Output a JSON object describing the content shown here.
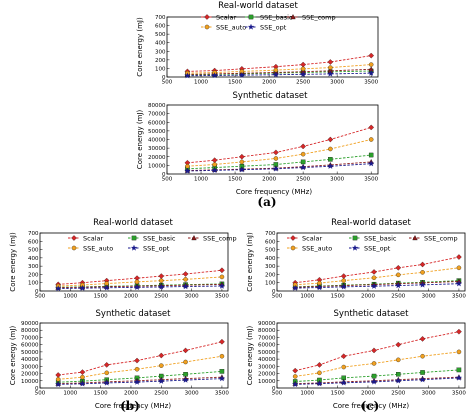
{
  "labels": [
    "(a)",
    "(b)",
    "(c)"
  ],
  "series_defs": [
    {
      "name": "Scalar",
      "color": "#d62728",
      "marker": "diamond"
    },
    {
      "name": "SSE_basic",
      "color": "#2ca02c",
      "marker": "square"
    },
    {
      "name": "SSE_comp",
      "color": "#8b1a1a",
      "marker": "triangle"
    },
    {
      "name": "SSE_auto",
      "color": "#f0a020",
      "marker": "circle"
    },
    {
      "name": "SSE_opt",
      "color": "#1a1a8c",
      "marker": "star"
    }
  ],
  "chart_data": [
    {
      "type": "line",
      "figure": "(a)",
      "title": "Real-world dataset",
      "xlabel": "",
      "ylabel": "Core energy (mJ)",
      "x": [
        800,
        1200,
        1600,
        2100,
        2500,
        2900,
        3500
      ],
      "xlim": [
        500,
        3600
      ],
      "ylim": [
        0,
        700
      ],
      "xticks": [
        500,
        1000,
        1500,
        2000,
        2500,
        3000,
        3500
      ],
      "yticks": [
        0,
        100,
        200,
        300,
        400,
        500,
        600,
        700
      ],
      "series": [
        {
          "name": "Scalar",
          "values": [
            65,
            75,
            95,
            120,
            145,
            175,
            250
          ]
        },
        {
          "name": "SSE_basic",
          "values": [
            25,
            30,
            37,
            45,
            52,
            60,
            70
          ]
        },
        {
          "name": "SSE_comp",
          "values": [
            30,
            36,
            44,
            53,
            62,
            72,
            90
          ]
        },
        {
          "name": "SSE_auto",
          "values": [
            45,
            52,
            65,
            80,
            95,
            110,
            145
          ]
        },
        {
          "name": "SSE_opt",
          "values": [
            15,
            18,
            22,
            27,
            31,
            36,
            45
          ]
        }
      ]
    },
    {
      "type": "line",
      "figure": "(a)",
      "title": "Synthetic dataset",
      "xlabel": "Core frequency (MHz)",
      "ylabel": "Core energy (mJ)",
      "x": [
        800,
        1200,
        1600,
        2100,
        2500,
        2900,
        3500
      ],
      "xlim": [
        500,
        3600
      ],
      "ylim": [
        0,
        80000
      ],
      "xticks": [
        500,
        1000,
        1500,
        2000,
        2500,
        3000,
        3500
      ],
      "yticks": [
        0,
        10000,
        20000,
        30000,
        40000,
        50000,
        60000,
        70000,
        80000
      ],
      "series": [
        {
          "name": "Scalar",
          "values": [
            13000,
            16000,
            20000,
            25000,
            32000,
            40000,
            54000
          ]
        },
        {
          "name": "SSE_basic",
          "values": [
            6000,
            7500,
            9000,
            11000,
            14000,
            17000,
            22000
          ]
        },
        {
          "name": "SSE_comp",
          "values": [
            4000,
            4800,
            5600,
            6800,
            8500,
            10500,
            14000
          ]
        },
        {
          "name": "SSE_auto",
          "values": [
            9000,
            11000,
            14000,
            18000,
            23000,
            29000,
            40000
          ]
        },
        {
          "name": "SSE_opt",
          "values": [
            3500,
            4200,
            5000,
            6000,
            7500,
            9000,
            12000
          ]
        }
      ]
    },
    {
      "type": "line",
      "figure": "(b)",
      "title": "Real-world dataset",
      "xlabel": "",
      "ylabel": "Core energy (mJ)",
      "x": [
        800,
        1200,
        1600,
        2100,
        2500,
        2900,
        3500
      ],
      "xlim": [
        500,
        3600
      ],
      "ylim": [
        0,
        700
      ],
      "xticks": [
        500,
        1000,
        1500,
        2000,
        2500,
        3000,
        3500
      ],
      "yticks": [
        0,
        100,
        200,
        300,
        400,
        500,
        600,
        700
      ],
      "series": [
        {
          "name": "Scalar",
          "values": [
            80,
            100,
            125,
            155,
            180,
            205,
            250
          ]
        },
        {
          "name": "SSE_basic",
          "values": [
            45,
            50,
            57,
            63,
            70,
            77,
            85
          ]
        },
        {
          "name": "SSE_comp",
          "values": [
            40,
            45,
            52,
            58,
            64,
            70,
            80
          ]
        },
        {
          "name": "SSE_auto",
          "values": [
            60,
            72,
            90,
            110,
            125,
            140,
            170
          ]
        },
        {
          "name": "SSE_opt",
          "values": [
            30,
            34,
            39,
            44,
            49,
            54,
            60
          ]
        }
      ]
    },
    {
      "type": "line",
      "figure": "(b)",
      "title": "Synthetic dataset",
      "xlabel": "Core frequency (MHz)",
      "ylabel": "Core energy (mJ)",
      "x": [
        800,
        1200,
        1600,
        2100,
        2500,
        2900,
        3500
      ],
      "xlim": [
        500,
        3600
      ],
      "ylim": [
        0,
        90000
      ],
      "xticks": [
        500,
        1000,
        1500,
        2000,
        2500,
        3000,
        3500
      ],
      "yticks": [
        0,
        10000,
        20000,
        30000,
        40000,
        50000,
        60000,
        70000,
        80000,
        90000
      ],
      "series": [
        {
          "name": "Scalar",
          "values": [
            18000,
            22000,
            32000,
            38000,
            45000,
            52000,
            64000
          ]
        },
        {
          "name": "SSE_basic",
          "values": [
            8000,
            9500,
            11500,
            14000,
            16500,
            19000,
            23000
          ]
        },
        {
          "name": "SSE_comp",
          "values": [
            6000,
            7000,
            8500,
            10000,
            11500,
            13000,
            15000
          ]
        },
        {
          "name": "SSE_auto",
          "values": [
            12000,
            15000,
            21000,
            26000,
            31000,
            36000,
            44000
          ]
        },
        {
          "name": "SSE_opt",
          "values": [
            5000,
            5800,
            7000,
            8200,
            9500,
            11000,
            13000
          ]
        }
      ]
    },
    {
      "type": "line",
      "figure": "(c)",
      "title": "Real-world dataset",
      "xlabel": "",
      "ylabel": "Core energy (mJ)",
      "x": [
        800,
        1200,
        1600,
        2100,
        2500,
        2900,
        3500
      ],
      "xlim": [
        500,
        3600
      ],
      "ylim": [
        0,
        700
      ],
      "xticks": [
        500,
        1000,
        1500,
        2000,
        2500,
        3000,
        3500
      ],
      "yticks": [
        0,
        100,
        200,
        300,
        400,
        500,
        600,
        700
      ],
      "series": [
        {
          "name": "Scalar",
          "values": [
            100,
            135,
            180,
            230,
            280,
            320,
            410
          ]
        },
        {
          "name": "SSE_basic",
          "values": [
            50,
            60,
            70,
            82,
            95,
            105,
            125
          ]
        },
        {
          "name": "SSE_comp",
          "values": [
            45,
            55,
            65,
            77,
            88,
            98,
            115
          ]
        },
        {
          "name": "SSE_auto",
          "values": [
            75,
            95,
            125,
            160,
            195,
            225,
            280
          ]
        },
        {
          "name": "SSE_opt",
          "values": [
            35,
            42,
            50,
            58,
            66,
            74,
            88
          ]
        }
      ]
    },
    {
      "type": "line",
      "figure": "(c)",
      "title": "Synthetic dataset",
      "xlabel": "Core frequency (MHz)",
      "ylabel": "Core energy (mJ)",
      "x": [
        800,
        1200,
        1600,
        2100,
        2500,
        2900,
        3500
      ],
      "xlim": [
        500,
        3600
      ],
      "ylim": [
        0,
        90000
      ],
      "xticks": [
        500,
        1000,
        1500,
        2000,
        2500,
        3000,
        3500
      ],
      "yticks": [
        0,
        10000,
        20000,
        30000,
        40000,
        50000,
        60000,
        70000,
        80000,
        90000
      ],
      "series": [
        {
          "name": "Scalar",
          "values": [
            24000,
            32000,
            44000,
            52000,
            60000,
            68000,
            78000
          ]
        },
        {
          "name": "SSE_basic",
          "values": [
            9000,
            11000,
            14000,
            16500,
            19000,
            21500,
            25000
          ]
        },
        {
          "name": "SSE_comp",
          "values": [
            6000,
            7000,
            8500,
            10000,
            11500,
            13000,
            15000
          ]
        },
        {
          "name": "SSE_auto",
          "values": [
            16000,
            21000,
            29000,
            34000,
            39000,
            44000,
            50000
          ]
        },
        {
          "name": "SSE_opt",
          "values": [
            5000,
            6000,
            7200,
            8500,
            10000,
            11500,
            14000
          ]
        }
      ]
    }
  ]
}
